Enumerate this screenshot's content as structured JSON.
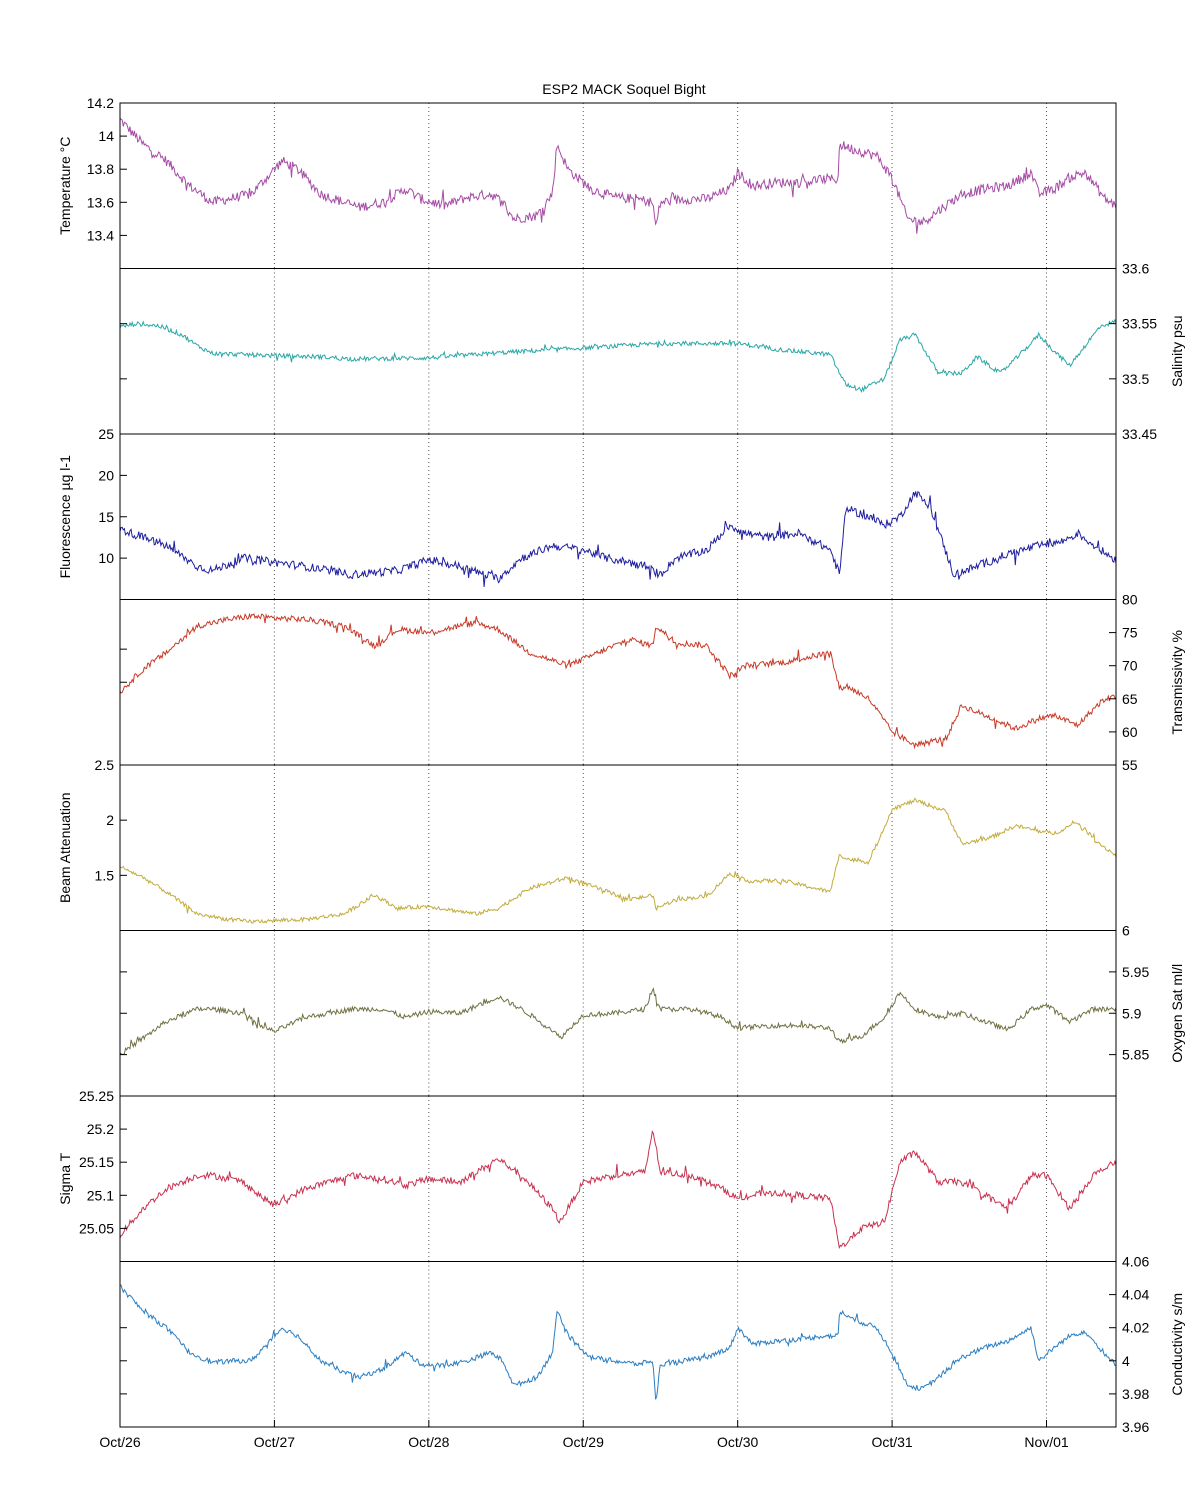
{
  "title": "ESP2 MACK  Soquel Bight",
  "x_ticks": [
    "Oct/26",
    "Oct/27",
    "Oct/28",
    "Oct/29",
    "Oct/30",
    "Oct/31",
    "Nov/01"
  ],
  "chart_data": [
    {
      "type": "line",
      "side": "left",
      "ylabel": "Temperature °C",
      "ylim": [
        13.2,
        14.2
      ],
      "yticks": [
        13.4,
        13.6,
        13.8,
        14,
        14.2
      ],
      "color": "#a64ca6",
      "noise": 0.03,
      "series": [
        {
          "x": [
            0,
            0.05,
            0.15,
            0.3,
            0.45,
            0.6,
            0.75,
            0.85,
            0.95,
            1.05,
            1.15,
            1.3,
            1.45,
            1.55,
            1.7,
            1.85,
            1.95,
            2.1,
            2.25,
            2.4,
            2.48,
            2.55,
            2.7,
            2.8,
            2.83,
            2.9,
            3.05,
            3.2,
            3.35,
            3.45,
            3.47,
            3.5,
            3.65,
            3.8,
            3.95,
            4.0,
            4.1,
            4.25,
            4.4,
            4.55,
            4.65,
            4.66,
            4.75,
            4.9,
            5.0,
            5.1,
            5.2,
            5.3,
            5.45,
            5.6,
            5.75,
            5.9,
            5.95,
            6.05,
            6.15,
            6.25,
            6.38,
            6.45
          ],
          "y": [
            14.1,
            14.05,
            13.95,
            13.85,
            13.7,
            13.6,
            13.63,
            13.65,
            13.75,
            13.85,
            13.8,
            13.65,
            13.6,
            13.57,
            13.6,
            13.68,
            13.62,
            13.58,
            13.63,
            13.65,
            13.6,
            13.5,
            13.52,
            13.65,
            13.95,
            13.8,
            13.68,
            13.63,
            13.62,
            13.6,
            13.45,
            13.6,
            13.62,
            13.62,
            13.68,
            13.78,
            13.7,
            13.72,
            13.72,
            13.74,
            13.74,
            13.95,
            13.92,
            13.88,
            13.75,
            13.5,
            13.48,
            13.55,
            13.65,
            13.68,
            13.7,
            13.78,
            13.65,
            13.68,
            13.75,
            13.78,
            13.62,
            13.58
          ]
        }
      ]
    },
    {
      "type": "line",
      "side": "right",
      "ylabel": "Salinity psu",
      "ylim": [
        33.45,
        33.6
      ],
      "yticks": [
        33.45,
        33.5,
        33.55,
        33.6
      ],
      "extra_left_ticks": [
        33.5,
        33.55
      ],
      "color": "#2aa7a7",
      "noise": 0.002,
      "series": [
        {
          "x": [
            0,
            0.1,
            0.25,
            0.4,
            0.5,
            0.6,
            0.8,
            1.0,
            1.3,
            1.5,
            2.0,
            2.5,
            3.0,
            3.5,
            4.0,
            4.3,
            4.6,
            4.66,
            4.7,
            4.8,
            4.95,
            5.05,
            5.15,
            5.3,
            5.45,
            5.55,
            5.7,
            5.85,
            5.95,
            6.05,
            6.15,
            6.25,
            6.35,
            6.45
          ],
          "y": [
            33.547,
            33.55,
            33.548,
            33.54,
            33.53,
            33.523,
            33.522,
            33.521,
            33.52,
            33.518,
            33.519,
            33.524,
            33.528,
            33.532,
            33.532,
            33.526,
            33.522,
            33.505,
            33.495,
            33.49,
            33.5,
            33.535,
            33.54,
            33.505,
            33.505,
            33.52,
            33.505,
            33.525,
            33.54,
            33.525,
            33.512,
            33.53,
            33.548,
            33.552
          ]
        }
      ]
    },
    {
      "type": "line",
      "side": "left",
      "ylabel": "Fluorescence µg l-1",
      "ylim": [
        5,
        25
      ],
      "yticks": [
        10,
        15,
        20,
        25
      ],
      "color": "#1f1fa0",
      "noise": 0.5,
      "series": [
        {
          "x": [
            0,
            0.15,
            0.3,
            0.5,
            0.6,
            0.8,
            1.0,
            1.2,
            1.5,
            1.8,
            2.0,
            2.2,
            2.45,
            2.6,
            2.8,
            3.0,
            3.15,
            3.3,
            3.4,
            3.5,
            3.6,
            3.8,
            3.95,
            4.05,
            4.2,
            4.4,
            4.6,
            4.66,
            4.7,
            4.85,
            4.95,
            5.05,
            5.15,
            5.25,
            5.4,
            5.55,
            5.75,
            5.95,
            6.1,
            6.2,
            6.35,
            6.45
          ],
          "y": [
            13.5,
            12.5,
            11.5,
            9.0,
            8.5,
            10.0,
            9.5,
            9.0,
            8.0,
            8.5,
            9.8,
            9.0,
            7.5,
            10.0,
            11.5,
            11.0,
            10.0,
            9.5,
            9.0,
            8.0,
            10.0,
            11.0,
            14.0,
            13.0,
            12.5,
            13.0,
            11.0,
            8.0,
            16.0,
            15.0,
            14.0,
            15.0,
            18.0,
            16.0,
            8.0,
            9.0,
            10.5,
            11.5,
            12.0,
            13.0,
            11.0,
            9.8
          ]
        }
      ]
    },
    {
      "type": "line",
      "side": "right",
      "ylabel": "Transmissivity %",
      "ylim": [
        55,
        80
      ],
      "yticks": [
        55,
        60,
        65,
        70,
        75,
        80
      ],
      "extra_left_ticks": [
        67.5,
        72.5
      ],
      "color": "#c83a28",
      "noise": 0.45,
      "series": [
        {
          "x": [
            0,
            0.15,
            0.3,
            0.5,
            0.7,
            0.85,
            1.0,
            1.2,
            1.45,
            1.65,
            1.8,
            2.0,
            2.3,
            2.45,
            2.65,
            2.9,
            3.1,
            3.3,
            3.45,
            3.47,
            3.6,
            3.8,
            3.95,
            4.05,
            4.3,
            4.6,
            4.66,
            4.7,
            4.85,
            5.0,
            5.15,
            5.35,
            5.45,
            5.65,
            5.8,
            5.95,
            6.05,
            6.2,
            6.35,
            6.45
          ],
          "y": [
            66.0,
            69.5,
            72.0,
            76.0,
            77.0,
            77.5,
            77.2,
            77.0,
            76.0,
            73.0,
            75.5,
            75.0,
            76.5,
            75.5,
            72.0,
            70.0,
            72.0,
            74.0,
            73.0,
            76.0,
            73.5,
            73.0,
            68.5,
            70.0,
            70.5,
            72.0,
            66.5,
            67.0,
            65.0,
            60.0,
            58.0,
            59.0,
            64.0,
            62.0,
            60.5,
            62.0,
            62.5,
            61.0,
            64.5,
            65.5
          ]
        }
      ]
    },
    {
      "type": "line",
      "side": "left",
      "ylabel": "Beam Attenuation",
      "ylim": [
        1,
        2.5
      ],
      "yticks": [
        1.5,
        2,
        2.5
      ],
      "color": "#c2ac3c",
      "noise": 0.018,
      "series": [
        {
          "x": [
            0,
            0.15,
            0.3,
            0.5,
            0.7,
            0.85,
            1.0,
            1.2,
            1.45,
            1.65,
            1.8,
            2.0,
            2.3,
            2.45,
            2.65,
            2.9,
            3.1,
            3.3,
            3.45,
            3.47,
            3.6,
            3.8,
            3.95,
            4.05,
            4.3,
            4.6,
            4.66,
            4.7,
            4.85,
            5.0,
            5.15,
            5.35,
            5.45,
            5.65,
            5.8,
            5.95,
            6.05,
            6.2,
            6.35,
            6.45
          ],
          "y": [
            1.58,
            1.48,
            1.35,
            1.15,
            1.1,
            1.08,
            1.09,
            1.1,
            1.15,
            1.32,
            1.2,
            1.22,
            1.15,
            1.2,
            1.38,
            1.48,
            1.38,
            1.28,
            1.32,
            1.2,
            1.28,
            1.31,
            1.52,
            1.45,
            1.45,
            1.35,
            1.7,
            1.65,
            1.62,
            2.1,
            2.18,
            2.08,
            1.78,
            1.85,
            1.95,
            1.9,
            1.88,
            1.98,
            1.78,
            1.68
          ]
        }
      ]
    },
    {
      "type": "line",
      "side": "right",
      "ylabel": "Oxygen Sat ml/l",
      "ylim": [
        5.8,
        6
      ],
      "yticks": [
        5.85,
        5.9,
        5.95,
        6
      ],
      "extra_left_ticks": [
        5.85,
        5.9,
        5.95
      ],
      "color": "#717144",
      "noise": 0.003,
      "series": [
        {
          "x": [
            0,
            0.15,
            0.3,
            0.5,
            0.6,
            0.8,
            0.9,
            1.0,
            1.2,
            1.5,
            1.7,
            1.85,
            2.0,
            2.2,
            2.45,
            2.6,
            2.8,
            2.85,
            3.0,
            3.2,
            3.4,
            3.45,
            3.5,
            3.7,
            3.9,
            4.0,
            4.2,
            4.4,
            4.6,
            4.66,
            4.8,
            4.95,
            5.05,
            5.15,
            5.3,
            5.45,
            5.6,
            5.75,
            5.9,
            6.0,
            6.15,
            6.3,
            6.45
          ],
          "y": [
            5.85,
            5.87,
            5.89,
            5.905,
            5.905,
            5.9,
            5.885,
            5.878,
            5.895,
            5.905,
            5.905,
            5.895,
            5.902,
            5.9,
            5.92,
            5.905,
            5.88,
            5.87,
            5.898,
            5.9,
            5.905,
            5.93,
            5.905,
            5.905,
            5.895,
            5.882,
            5.885,
            5.885,
            5.882,
            5.865,
            5.872,
            5.895,
            5.925,
            5.905,
            5.895,
            5.9,
            5.89,
            5.88,
            5.905,
            5.91,
            5.89,
            5.905,
            5.905
          ]
        }
      ]
    },
    {
      "type": "line",
      "side": "left",
      "ylabel": "Sigma T",
      "ylim": [
        25,
        25.25
      ],
      "yticks": [
        25.05,
        25.1,
        25.15,
        25.2,
        25.25
      ],
      "color": "#c83250",
      "noise": 0.005,
      "series": [
        {
          "x": [
            0,
            0.15,
            0.3,
            0.5,
            0.6,
            0.8,
            0.9,
            1.0,
            1.2,
            1.5,
            1.7,
            1.85,
            2.0,
            2.2,
            2.45,
            2.6,
            2.8,
            2.85,
            3.0,
            3.2,
            3.4,
            3.45,
            3.5,
            3.7,
            3.9,
            4.0,
            4.2,
            4.4,
            4.6,
            4.66,
            4.8,
            4.95,
            5.05,
            5.15,
            5.3,
            5.45,
            5.6,
            5.75,
            5.9,
            6.0,
            6.15,
            6.3,
            6.45
          ],
          "y": [
            25.04,
            25.08,
            25.11,
            25.13,
            25.13,
            25.12,
            25.1,
            25.085,
            25.11,
            25.13,
            25.125,
            25.115,
            25.125,
            25.12,
            25.155,
            25.13,
            25.08,
            25.06,
            25.12,
            25.13,
            25.135,
            25.2,
            25.135,
            25.13,
            25.11,
            25.095,
            25.105,
            25.1,
            25.095,
            25.02,
            25.05,
            25.06,
            25.15,
            25.165,
            25.12,
            25.12,
            25.1,
            25.08,
            25.13,
            25.13,
            25.08,
            25.13,
            25.15
          ]
        }
      ]
    },
    {
      "type": "line",
      "side": "right",
      "ylabel": "Conductivity s/m",
      "ylim": [
        3.96,
        4.06
      ],
      "yticks": [
        3.96,
        3.98,
        4,
        4.02,
        4.04,
        4.06
      ],
      "extra_left_ticks": [
        3.98,
        4,
        4.02
      ],
      "color": "#2a7ec2",
      "noise": 0.0015,
      "series": [
        {
          "x": [
            0,
            0.05,
            0.15,
            0.3,
            0.45,
            0.6,
            0.75,
            0.85,
            0.95,
            1.05,
            1.15,
            1.3,
            1.45,
            1.55,
            1.7,
            1.85,
            1.95,
            2.1,
            2.25,
            2.4,
            2.48,
            2.55,
            2.7,
            2.8,
            2.83,
            2.9,
            3.05,
            3.2,
            3.35,
            3.45,
            3.47,
            3.5,
            3.65,
            3.8,
            3.95,
            4.0,
            4.1,
            4.25,
            4.4,
            4.55,
            4.65,
            4.66,
            4.75,
            4.9,
            5.0,
            5.1,
            5.2,
            5.3,
            5.45,
            5.6,
            5.75,
            5.9,
            5.95,
            6.05,
            6.15,
            6.25,
            6.38,
            6.45
          ],
          "y": [
            4.045,
            4.04,
            4.03,
            4.02,
            4.005,
            3.999,
            4.0,
            4.0,
            4.01,
            4.02,
            4.015,
            4.0,
            3.993,
            3.99,
            3.995,
            4.005,
            3.998,
            3.997,
            4.0,
            4.005,
            4.0,
            3.985,
            3.99,
            4.005,
            4.03,
            4.015,
            4.002,
            4.0,
            3.998,
            4.0,
            3.975,
            3.998,
            4.0,
            4.002,
            4.008,
            4.02,
            4.01,
            4.012,
            4.013,
            4.015,
            4.015,
            4.03,
            4.025,
            4.02,
            4.005,
            3.985,
            3.983,
            3.99,
            4.002,
            4.008,
            4.012,
            4.02,
            4.0,
            4.008,
            4.015,
            4.018,
            4.003,
            3.998
          ]
        }
      ]
    }
  ]
}
